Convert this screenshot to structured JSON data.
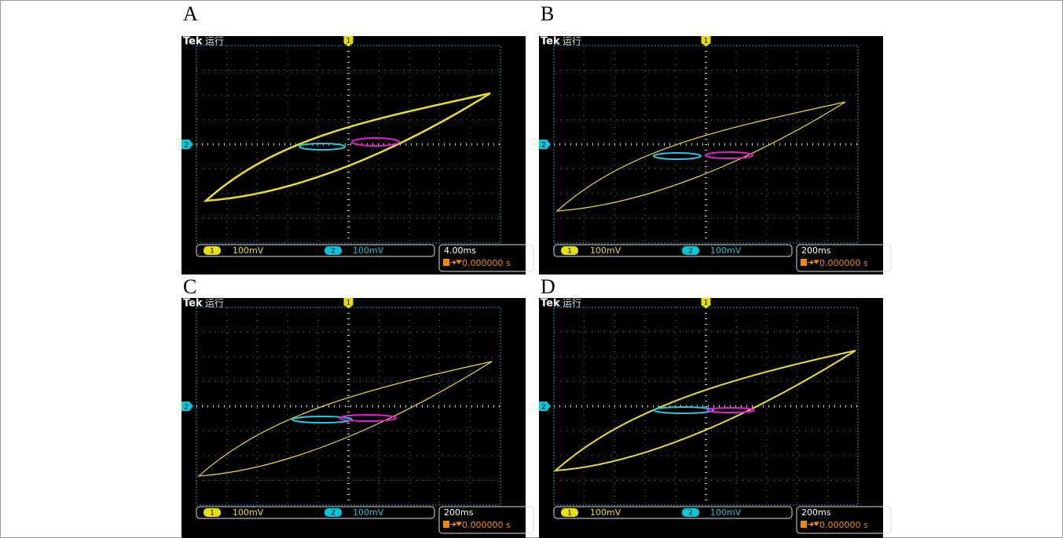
{
  "panels": [
    {
      "label": "A",
      "brand": "Tek",
      "status": "运行",
      "trigger_marker": "1",
      "ch2_marker": "2",
      "ch1": {
        "number": "1",
        "scale": "100mV"
      },
      "ch2": {
        "number": "2",
        "scale": "100mV"
      },
      "timebase": "4.00ms",
      "trigger": "0.000000 s"
    },
    {
      "label": "B",
      "brand": "Tek",
      "status": "运行",
      "trigger_marker": "1",
      "ch2_marker": "2",
      "ch1": {
        "number": "1",
        "scale": "100mV"
      },
      "ch2": {
        "number": "2",
        "scale": "100mV"
      },
      "timebase": "200ms",
      "trigger": "0.000000 s"
    },
    {
      "label": "C",
      "brand": "Tek",
      "status": "运行",
      "trigger_marker": "1",
      "ch2_marker": "2",
      "ch1": {
        "number": "1",
        "scale": "100mV"
      },
      "ch2": {
        "number": "2",
        "scale": "100mV"
      },
      "timebase": "200ms",
      "trigger": "0.000000 s"
    },
    {
      "label": "D",
      "brand": "Tek",
      "status": "运行",
      "trigger_marker": "1",
      "ch2_marker": "2",
      "ch1": {
        "number": "1",
        "scale": "100mV"
      },
      "ch2": {
        "number": "2",
        "scale": "100mV"
      },
      "timebase": "200ms",
      "trigger": "0.000000 s"
    }
  ]
}
